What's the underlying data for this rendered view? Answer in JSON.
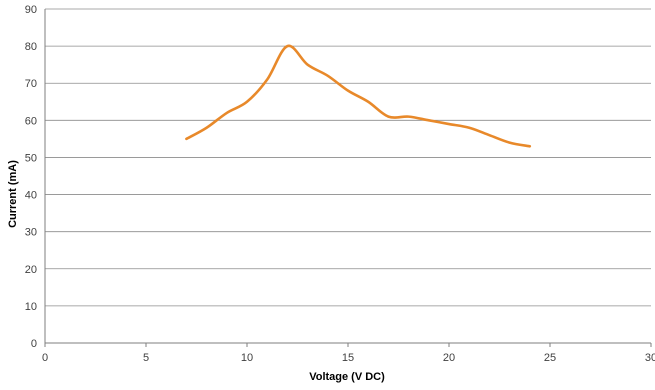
{
  "chart_data": {
    "type": "line",
    "title": "",
    "xlabel": "Voltage (V DC)",
    "ylabel": "Current (mA)",
    "xlim": [
      0,
      30
    ],
    "ylim": [
      0,
      90
    ],
    "xticks": [
      0,
      5,
      10,
      15,
      20,
      25,
      30
    ],
    "yticks": [
      0,
      10,
      20,
      30,
      40,
      50,
      60,
      70,
      80,
      90
    ],
    "grid": "horizontal",
    "legend": "none",
    "series": [
      {
        "color": "#E8892A",
        "smooth": true,
        "x": [
          7,
          8,
          9,
          10,
          11,
          12,
          13,
          14,
          15,
          16,
          17,
          18,
          19,
          20,
          21,
          22,
          23,
          24
        ],
        "y": [
          55,
          58,
          62,
          65,
          71,
          80,
          75,
          72,
          68,
          65,
          61,
          61,
          60,
          59,
          58,
          56,
          54,
          53
        ]
      }
    ]
  }
}
